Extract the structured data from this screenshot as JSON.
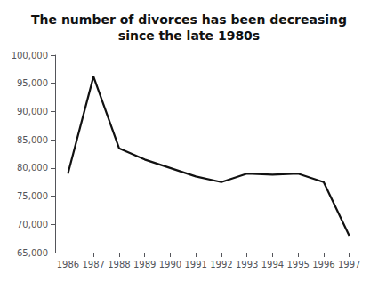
{
  "chart_data": {
    "type": "line",
    "title": "The number of divorces has been decreasing\nsince the late 1980s",
    "x": [
      1986,
      1987,
      1988,
      1989,
      1990,
      1991,
      1992,
      1993,
      1994,
      1995,
      1996,
      1997
    ],
    "values": [
      79000,
      96200,
      83500,
      81500,
      80000,
      78500,
      77500,
      79000,
      78800,
      79000,
      77500,
      68000
    ],
    "color": "#111111",
    "xlim": [
      1985.5,
      1997.5
    ],
    "xticks": [
      1986,
      1987,
      1988,
      1989,
      1990,
      1991,
      1992,
      1993,
      1994,
      1995,
      1996,
      1997
    ],
    "ylim": [
      65000,
      100000
    ],
    "yticks": [
      {
        "value": 65000,
        "label": "65,000"
      },
      {
        "value": 70000,
        "label": "70,000"
      },
      {
        "value": 75000,
        "label": "75,000"
      },
      {
        "value": 80000,
        "label": "80,000"
      },
      {
        "value": 85000,
        "label": "85,000"
      },
      {
        "value": 90000,
        "label": "90,000"
      },
      {
        "value": 95000,
        "label": "95,000"
      },
      {
        "value": 100000,
        "label": "100,000"
      }
    ],
    "grid": false
  }
}
